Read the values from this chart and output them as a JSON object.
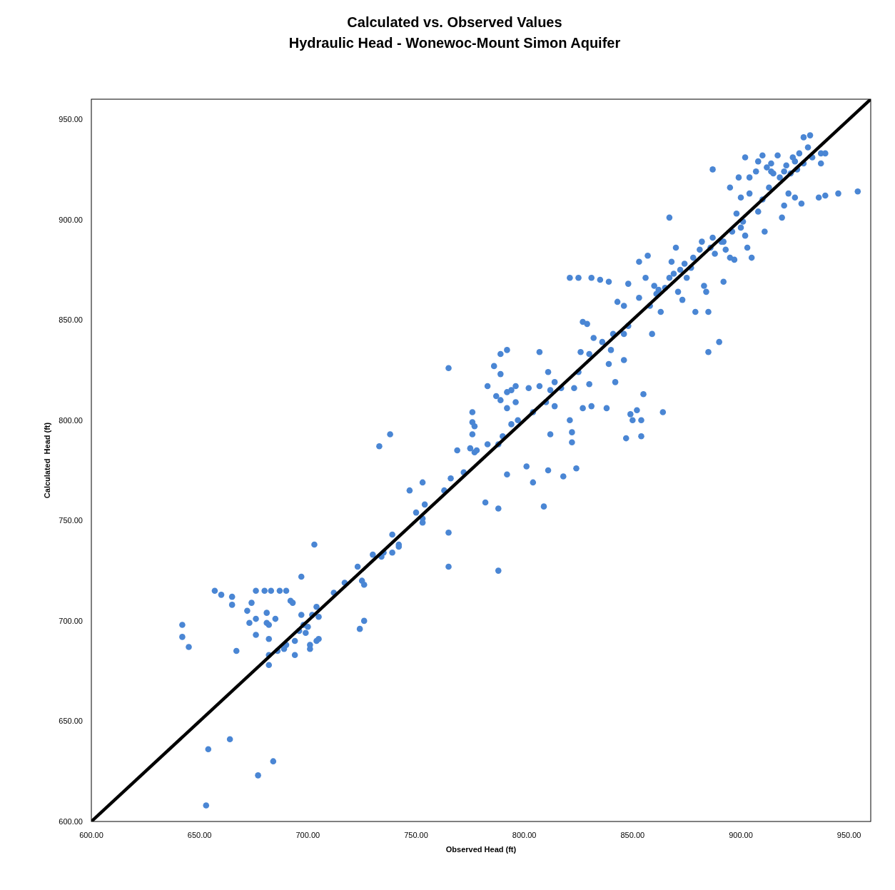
{
  "chart_data": {
    "type": "scatter",
    "title": "Calculated vs. Observed Values",
    "subtitle": "Hydraulic Head - Wonewoc-Mount Simon Aquifer",
    "xlabel": "Observed Head (ft)",
    "ylabel": "Calculated  Head (ft)",
    "xlim": [
      600,
      960
    ],
    "ylim": [
      600,
      960
    ],
    "xticks": [
      {
        "value": 600,
        "label": "600.00"
      },
      {
        "value": 650,
        "label": "650.00"
      },
      {
        "value": 700,
        "label": "700.00"
      },
      {
        "value": 750,
        "label": "750.00"
      },
      {
        "value": 800,
        "label": "800.00"
      },
      {
        "value": 850,
        "label": "850.00"
      },
      {
        "value": 900,
        "label": "900.00"
      },
      {
        "value": 950,
        "label": "950.00"
      }
    ],
    "yticks": [
      {
        "value": 600,
        "label": "600.00"
      },
      {
        "value": 650,
        "label": "650.00"
      },
      {
        "value": 700,
        "label": "700.00"
      },
      {
        "value": 750,
        "label": "750.00"
      },
      {
        "value": 800,
        "label": "800.00"
      },
      {
        "value": 850,
        "label": "850.00"
      },
      {
        "value": 900,
        "label": "900.00"
      },
      {
        "value": 950,
        "label": "950.00"
      }
    ],
    "grid": false,
    "series": [
      {
        "color": "#4a86d4",
        "marker": "circle",
        "x": [
          653,
          654,
          664,
          677,
          684,
          642,
          642,
          645,
          657,
          660,
          665,
          665,
          667,
          672,
          674,
          673,
          676,
          676,
          676,
          680,
          681,
          681,
          682,
          682,
          682,
          682,
          683,
          685,
          687,
          690,
          686,
          689,
          690,
          692,
          693,
          694,
          694,
          696,
          697,
          697,
          698,
          699,
          700,
          701,
          701,
          702,
          703,
          704,
          704,
          705,
          705,
          712,
          717,
          723,
          724,
          725,
          726,
          726,
          730,
          733,
          734,
          735,
          738,
          739,
          739,
          742,
          742,
          747,
          750,
          753,
          753,
          753,
          754,
          763,
          765,
          765,
          765,
          766,
          769,
          772,
          775,
          776,
          776,
          776,
          777,
          777,
          778,
          782,
          783,
          783,
          786,
          787,
          788,
          788,
          788,
          789,
          789,
          789,
          790,
          792,
          792,
          792,
          792,
          794,
          794,
          796,
          796,
          797,
          801,
          802,
          804,
          804,
          807,
          807,
          809,
          810,
          811,
          811,
          812,
          812,
          814,
          814,
          817,
          818,
          821,
          821,
          822,
          822,
          823,
          824,
          825,
          825,
          826,
          827,
          827,
          829,
          830,
          830,
          831,
          831,
          832,
          835,
          836,
          838,
          839,
          839,
          840,
          841,
          842,
          843,
          846,
          846,
          846,
          847,
          848,
          848,
          849,
          850,
          852,
          853,
          853,
          854,
          854,
          855,
          856,
          857,
          858,
          859,
          860,
          861,
          863,
          864,
          865,
          867,
          867,
          868,
          870,
          871,
          872,
          873,
          875,
          877,
          878,
          879,
          881,
          882,
          883,
          884,
          885,
          885,
          887,
          887,
          888,
          890,
          891,
          892,
          893,
          895,
          895,
          896,
          897,
          898,
          899,
          900,
          901,
          902,
          902,
          903,
          904,
          905,
          907,
          908,
          910,
          910,
          911,
          913,
          914,
          915,
          917,
          918,
          919,
          920,
          921,
          922,
          923,
          924,
          925,
          926,
          927,
          928,
          929,
          929,
          931,
          932,
          933,
          936,
          937,
          937,
          939,
          939,
          945,
          954,
          904,
          914,
          920,
          908,
          925,
          912,
          862,
          869,
          874,
          886,
          892,
          900
        ],
        "values": [
          608,
          636,
          641,
          623,
          630,
          698,
          692,
          687,
          715,
          713,
          712,
          708,
          685,
          705,
          709,
          699,
          715,
          701,
          693,
          715,
          704,
          699,
          698,
          691,
          683,
          678,
          715,
          701,
          715,
          715,
          685,
          686,
          688,
          710,
          709,
          683,
          690,
          695,
          722,
          703,
          698,
          694,
          697,
          686,
          688,
          703,
          738,
          707,
          690,
          691,
          702,
          714,
          719,
          727,
          696,
          720,
          718,
          700,
          733,
          787,
          732,
          734,
          793,
          734,
          743,
          737,
          738,
          765,
          754,
          751,
          749,
          769,
          758,
          765,
          744,
          727,
          826,
          771,
          785,
          774,
          786,
          804,
          799,
          793,
          797,
          784,
          785,
          759,
          817,
          788,
          827,
          812,
          788,
          725,
          756,
          833,
          823,
          810,
          792,
          835,
          773,
          806,
          814,
          815,
          798,
          809,
          817,
          800,
          777,
          816,
          769,
          804,
          834,
          817,
          757,
          809,
          824,
          775,
          793,
          815,
          807,
          819,
          816,
          772,
          800,
          871,
          794,
          789,
          816,
          776,
          871,
          824,
          834,
          849,
          806,
          848,
          833,
          818,
          807,
          871,
          841,
          870,
          839,
          806,
          869,
          828,
          835,
          843,
          819,
          859,
          843,
          857,
          830,
          791,
          847,
          868,
          803,
          800,
          805,
          879,
          861,
          800,
          792,
          813,
          871,
          882,
          857,
          843,
          867,
          863,
          854,
          804,
          866,
          871,
          901,
          879,
          886,
          864,
          875,
          860,
          871,
          876,
          881,
          854,
          885,
          889,
          867,
          864,
          854,
          834,
          925,
          891,
          883,
          839,
          889,
          869,
          885,
          916,
          881,
          894,
          880,
          903,
          921,
          911,
          899,
          892,
          931,
          886,
          913,
          881,
          924,
          904,
          932,
          910,
          894,
          916,
          928,
          923,
          932,
          921,
          901,
          907,
          927,
          913,
          923,
          931,
          911,
          925,
          933,
          908,
          928,
          941,
          936,
          942,
          931,
          911,
          933,
          928,
          912,
          933,
          913,
          914,
          921,
          924,
          924,
          929,
          929,
          926,
          865,
          873,
          878,
          886,
          889,
          896
        ]
      },
      {
        "type": "line",
        "color": "#000000",
        "line_style": "solid",
        "marker": "none",
        "x": [
          600,
          960
        ],
        "values": [
          600,
          960
        ]
      }
    ]
  }
}
